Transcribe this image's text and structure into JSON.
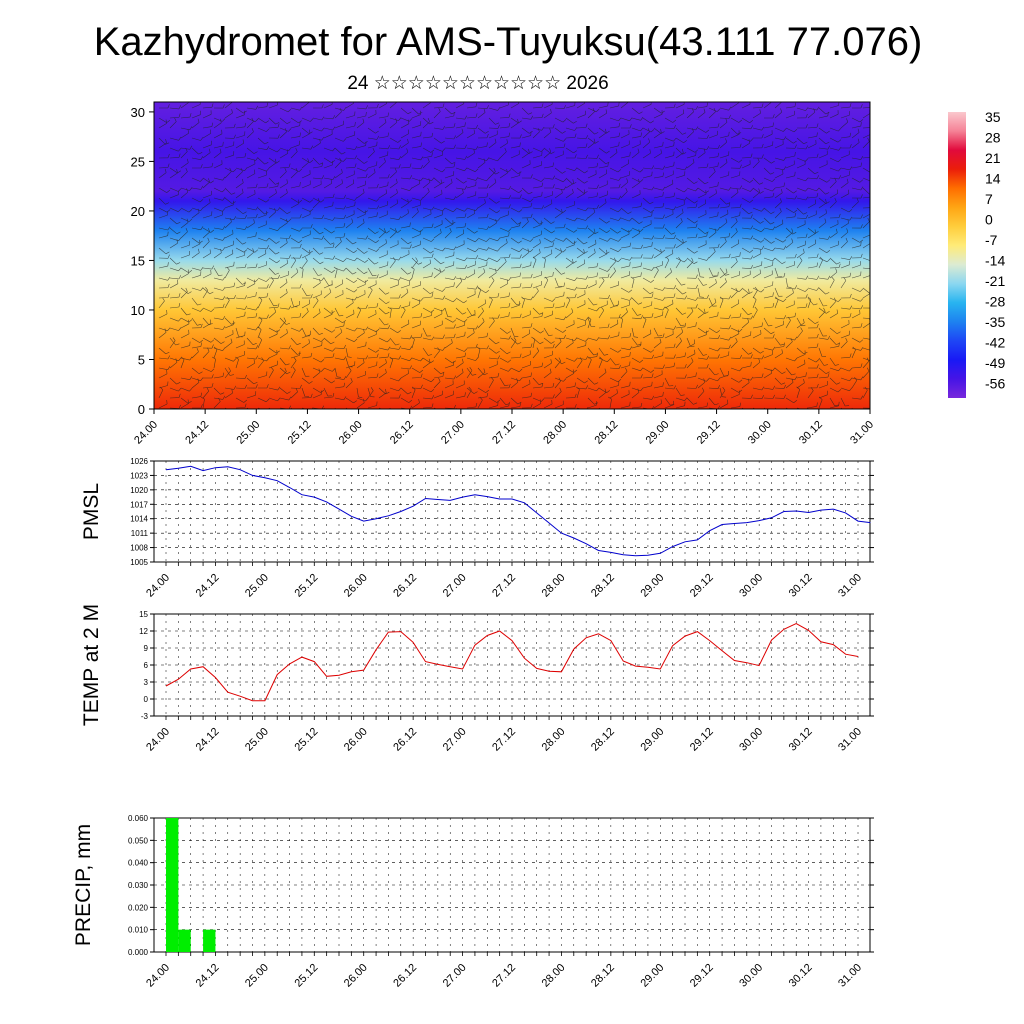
{
  "header": {
    "title": "Kazhydromet for AMS-Tuyuksu(43.111 77.076)",
    "subtitle": "24 ☆☆☆☆☆☆☆☆☆☆☆ 2026"
  },
  "colors": {
    "pmsl_line": "#0000cc",
    "temp_line": "#dd0000",
    "precip_bar": "#00ee00",
    "grid": "#000000"
  },
  "chart_data": [
    {
      "type": "heatmap",
      "name": "cross-section",
      "y_ticks": [
        "0",
        "5",
        "10",
        "15",
        "20",
        "25",
        "30"
      ],
      "ylim": [
        0,
        31
      ],
      "x_ticks": [
        "24.00",
        "24.12",
        "25.00",
        "25.12",
        "26.00",
        "26.12",
        "27.00",
        "27.12",
        "28.00",
        "28.12",
        "29.00",
        "29.12",
        "30.00",
        "30.12",
        "31.00"
      ],
      "colorbar_labels": [
        "35",
        "28",
        "21",
        "14",
        "7",
        "0",
        "-7",
        "-14",
        "-21",
        "-28",
        "-35",
        "-42",
        "-49",
        "-56"
      ],
      "colorbar_range": [
        -63,
        42
      ],
      "level_temps": [
        [
          0,
          20
        ],
        [
          5,
          13
        ],
        [
          10,
          1
        ],
        [
          13,
          -10
        ],
        [
          15,
          -20
        ],
        [
          18,
          -35
        ],
        [
          21,
          -53
        ],
        [
          22,
          -58
        ],
        [
          26,
          -56
        ],
        [
          31,
          -60
        ]
      ]
    },
    {
      "type": "line",
      "ylabel": "PMSL",
      "y_ticks": [
        "1005",
        "1008",
        "1011",
        "1014",
        "1017",
        "1020",
        "1023",
        "1026"
      ],
      "ylim": [
        1005,
        1026
      ],
      "x_ticks": [
        "24.00",
        "24.12",
        "25.00",
        "25.12",
        "26.00",
        "26.12",
        "27.00",
        "27.12",
        "28.00",
        "28.12",
        "29.00",
        "29.12",
        "30.00",
        "30.12",
        "31.00"
      ],
      "values": [
        1024.2,
        1024.5,
        1024.9,
        1024.0,
        1024.6,
        1024.8,
        1024.2,
        1023.0,
        1022.5,
        1021.9,
        1020.5,
        1019.0,
        1018.5,
        1017.5,
        1016.0,
        1014.5,
        1013.5,
        1014.0,
        1014.6,
        1015.5,
        1016.6,
        1018.2,
        1018.0,
        1017.8,
        1018.5,
        1019.0,
        1018.6,
        1018.1,
        1018.1,
        1017.3,
        1015.2,
        1013.1,
        1011.0,
        1010.0,
        1008.8,
        1007.4,
        1007.0,
        1006.5,
        1006.3,
        1006.4,
        1006.8,
        1008.2,
        1009.2,
        1009.6,
        1011.5,
        1012.8,
        1013.0,
        1013.2,
        1013.6,
        1014.2,
        1015.5,
        1015.6,
        1015.3,
        1015.8,
        1016.0,
        1015.2,
        1013.5,
        1013.2
      ]
    },
    {
      "type": "line",
      "ylabel": "TEMP at 2 M",
      "y_ticks": [
        "-3",
        "0",
        "3",
        "6",
        "9",
        "12",
        "15"
      ],
      "ylim": [
        -3,
        15
      ],
      "x_ticks": [
        "24.00",
        "24.12",
        "25.00",
        "25.12",
        "26.00",
        "26.12",
        "27.00",
        "27.12",
        "28.00",
        "28.12",
        "29.00",
        "29.12",
        "30.00",
        "30.12",
        "31.00"
      ],
      "values": [
        2.3,
        3.5,
        5.3,
        5.7,
        3.8,
        1.2,
        0.5,
        -0.3,
        -0.3,
        4.3,
        6.2,
        7.4,
        6.6,
        4.0,
        4.2,
        4.8,
        5.1,
        8.7,
        11.8,
        11.9,
        10.0,
        6.6,
        6.1,
        5.7,
        5.3,
        9.5,
        11.2,
        12.0,
        10.3,
        7.2,
        5.4,
        4.9,
        4.8,
        8.8,
        10.8,
        11.5,
        10.3,
        6.7,
        5.8,
        5.6,
        5.3,
        9.4,
        11.1,
        11.9,
        10.3,
        8.5,
        6.8,
        6.4,
        5.9,
        10.4,
        12.3,
        13.3,
        12.1,
        10.1,
        9.6,
        7.9,
        7.5
      ]
    },
    {
      "type": "bar",
      "ylabel": "PRECIP, mm",
      "y_ticks": [
        "0.000",
        "0.010",
        "0.020",
        "0.030",
        "0.040",
        "0.050",
        "0.060"
      ],
      "ylim": [
        0,
        0.06
      ],
      "x_ticks": [
        "24.00",
        "24.12",
        "25.00",
        "25.12",
        "26.00",
        "26.12",
        "27.00",
        "27.12",
        "28.00",
        "28.12",
        "29.00",
        "29.12",
        "30.00",
        "30.12",
        "31.00"
      ],
      "bars": [
        {
          "hour": 0,
          "value": 0.06
        },
        {
          "hour": 3,
          "value": 0.01
        },
        {
          "hour": 9,
          "value": 0.01
        }
      ]
    }
  ]
}
